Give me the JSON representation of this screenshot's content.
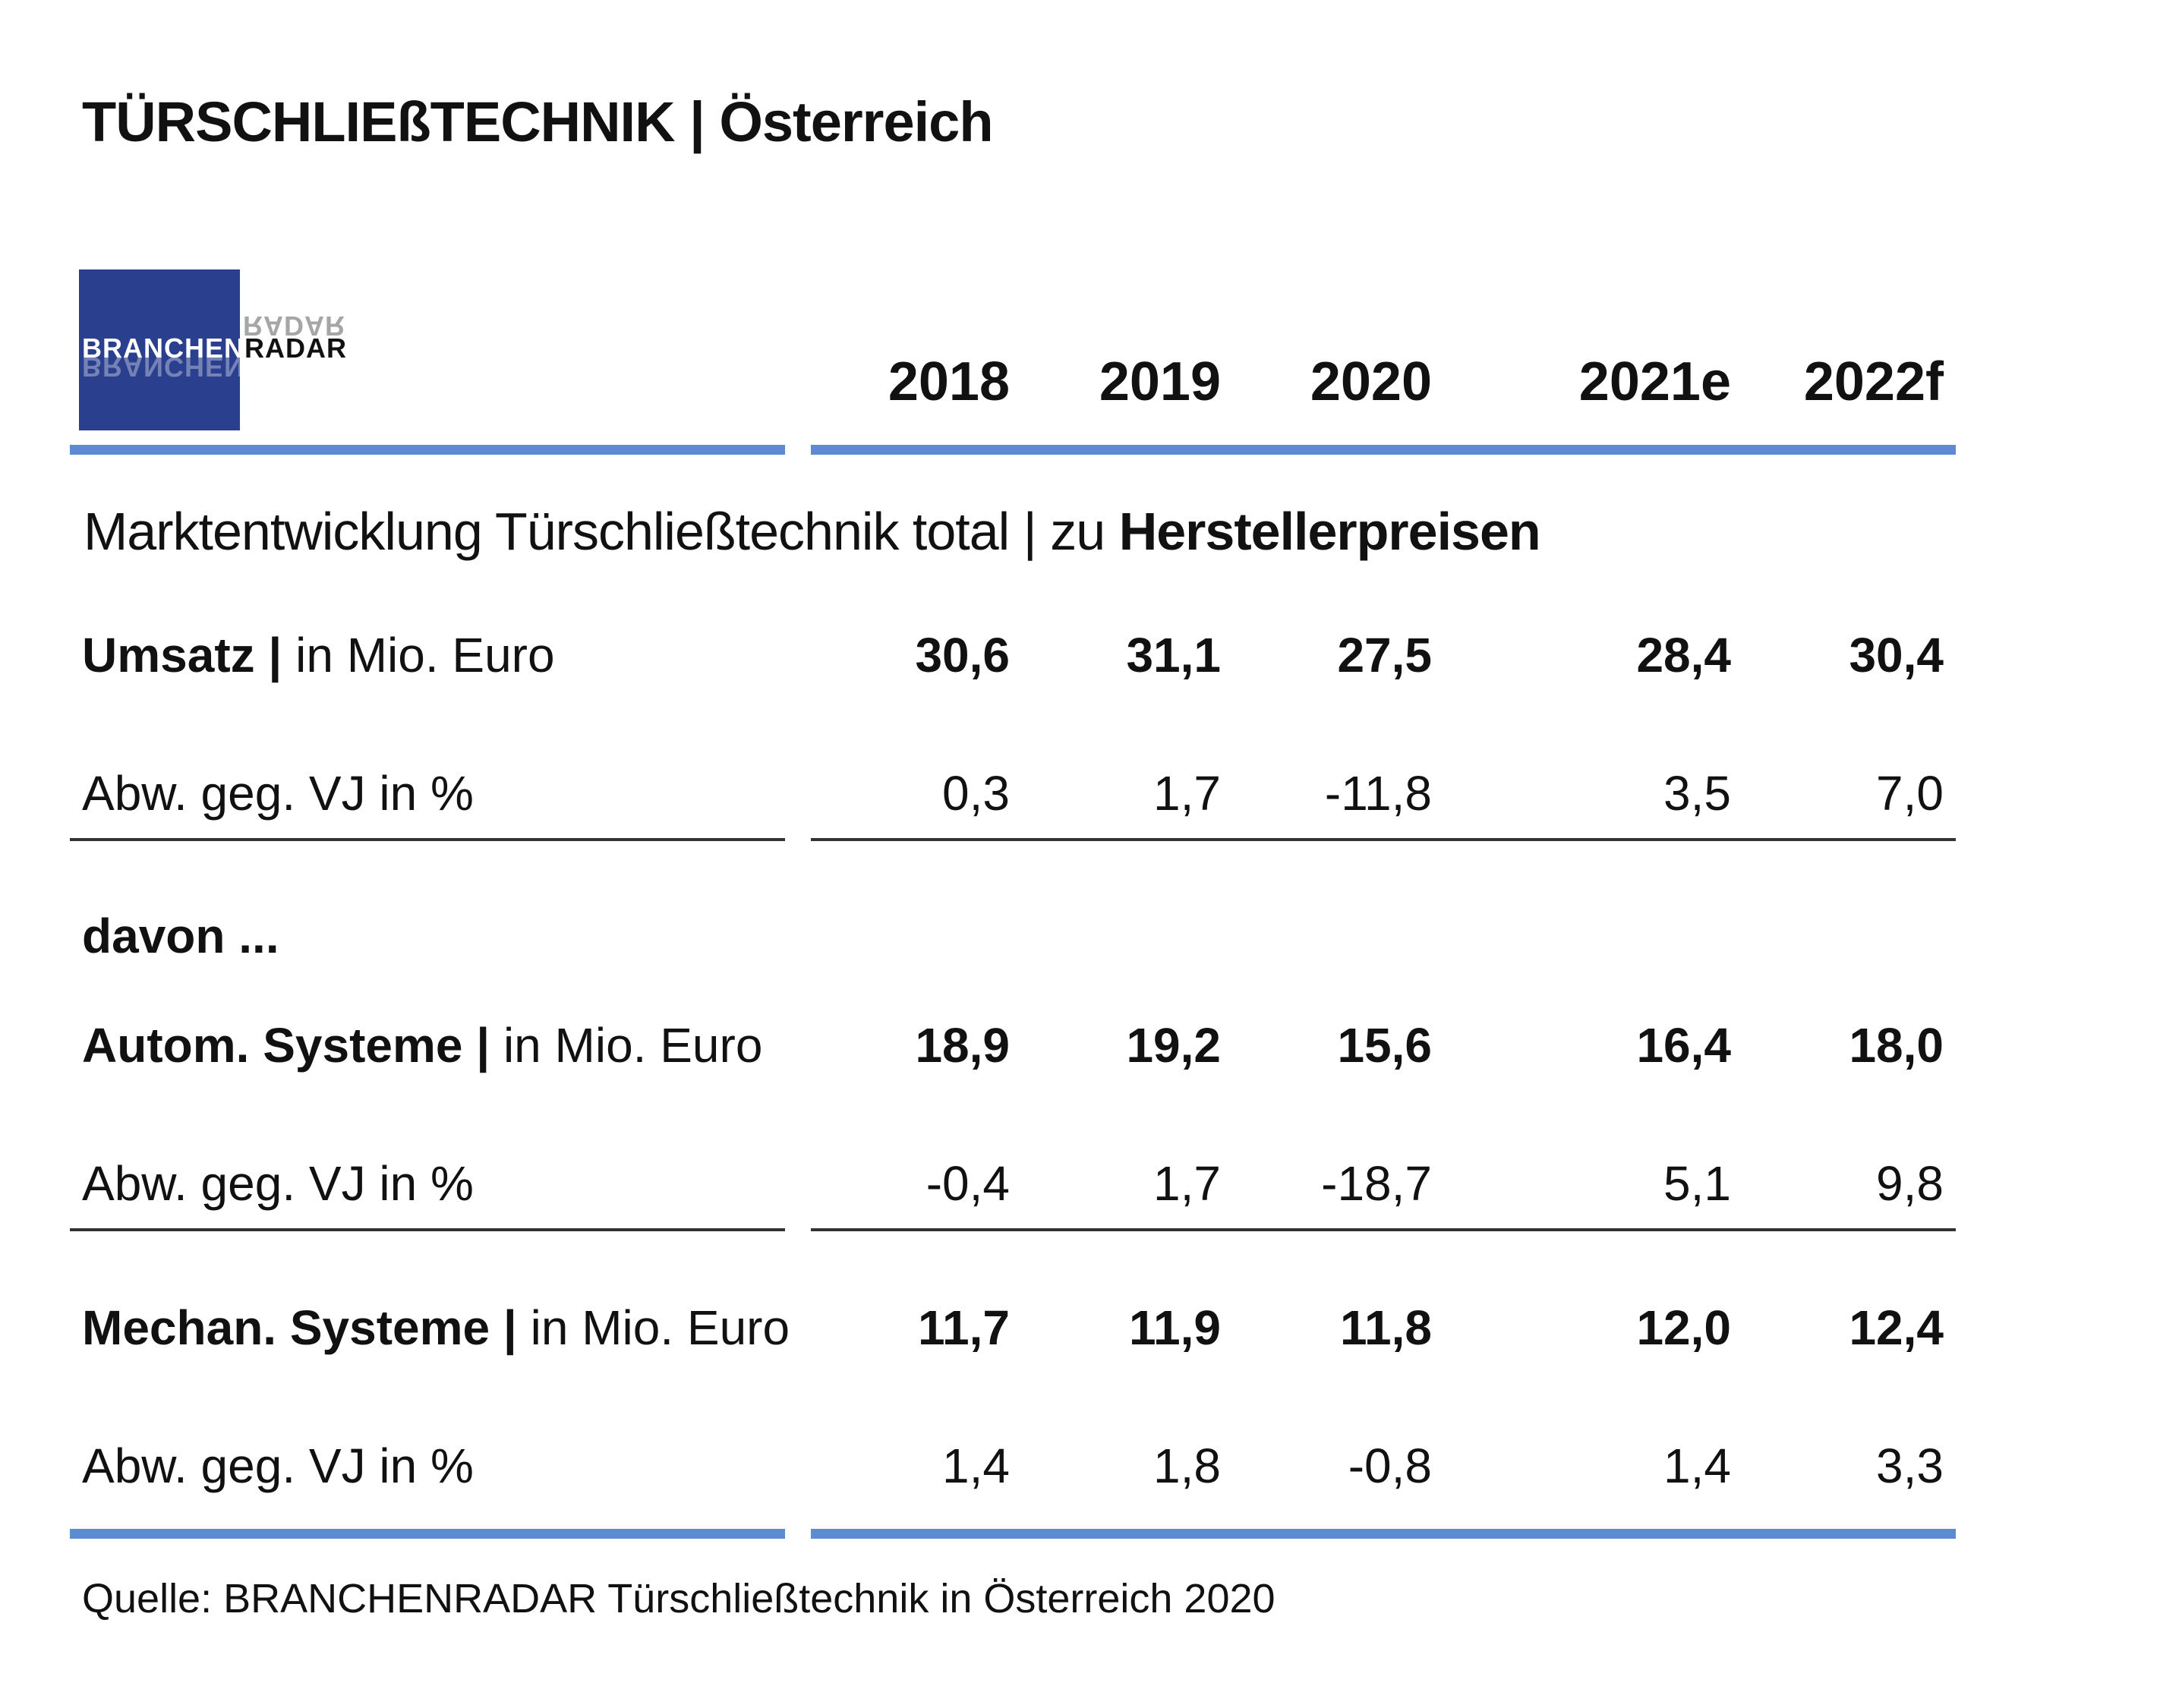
{
  "title": "TÜRSCHLIEßTECHNIK | Österreich",
  "logo": {
    "part1": "BRANCHEN",
    "part2": "RADAR"
  },
  "subtitle": {
    "normal": "Marktentwicklung Türschließtechnik total | zu ",
    "bold": "Herstellerpreisen"
  },
  "davon_label": "davon ...",
  "source": "Quelle: BRANCHENRADAR Türschließtechnik in Österreich 2020",
  "colors": {
    "accent_blue": "#5b8bd0",
    "logo_blue": "#2b3f8f",
    "rule_dark": "#333333"
  },
  "chart_data": {
    "type": "table",
    "columns": [
      "2018",
      "2019",
      "2020",
      "2021e",
      "2022f"
    ],
    "rows": [
      {
        "label_bold": "Umsatz |",
        "label_normal": " in Mio. Euro",
        "bold": true,
        "values": [
          "30,6",
          "31,1",
          "27,5",
          "28,4",
          "30,4"
        ]
      },
      {
        "label_bold": "",
        "label_normal": "Abw. geg. VJ in %",
        "bold": false,
        "values": [
          "0,3",
          "1,7",
          "-11,8",
          "3,5",
          "7,0"
        ]
      },
      {
        "label_bold": "Autom. Systeme |",
        "label_normal": " in Mio. Euro",
        "bold": true,
        "values": [
          "18,9",
          "19,2",
          "15,6",
          "16,4",
          "18,0"
        ]
      },
      {
        "label_bold": "",
        "label_normal": "Abw. geg. VJ in %",
        "bold": false,
        "values": [
          "-0,4",
          "1,7",
          "-18,7",
          "5,1",
          "9,8"
        ]
      },
      {
        "label_bold": "Mechan. Systeme |",
        "label_normal": " in Mio. Euro",
        "bold": true,
        "values": [
          "11,7",
          "11,9",
          "11,8",
          "12,0",
          "12,4"
        ]
      },
      {
        "label_bold": "",
        "label_normal": "Abw. geg. VJ in %",
        "bold": false,
        "values": [
          "1,4",
          "1,8",
          "-0,8",
          "1,4",
          "3,3"
        ]
      }
    ]
  }
}
